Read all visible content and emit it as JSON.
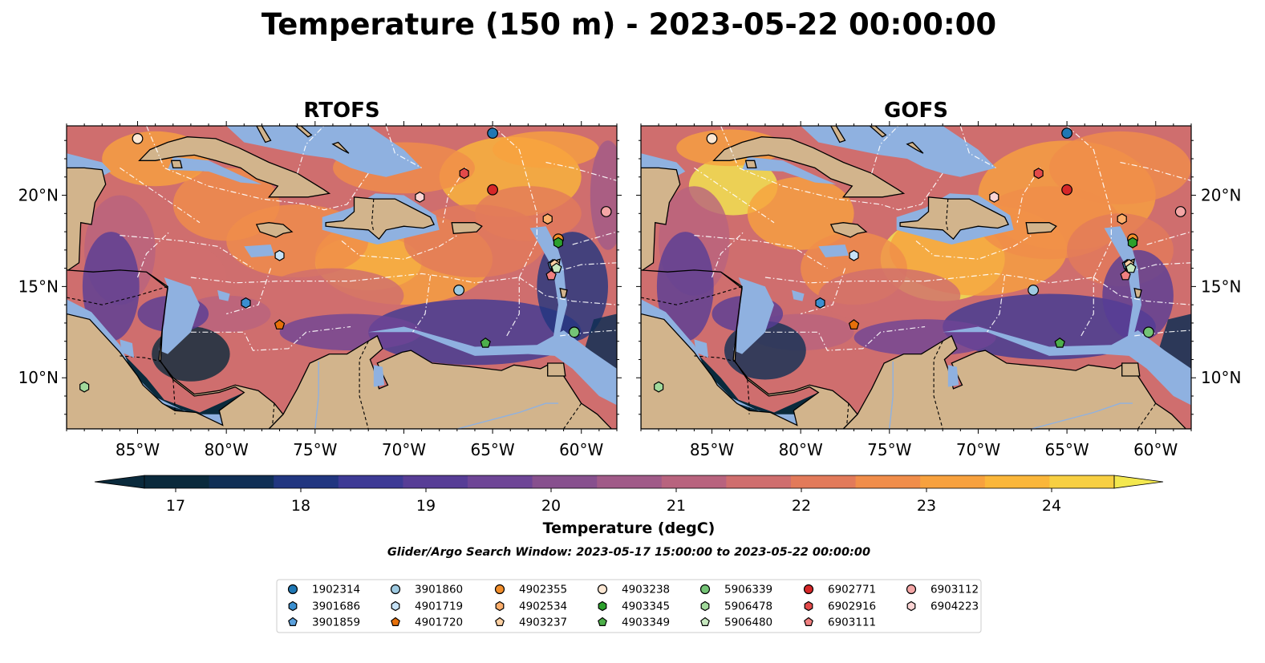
{
  "figure": {
    "title": "Temperature (150 m) - 2023-05-22 00:00:00",
    "panels": [
      {
        "id": "rtofs",
        "title": "RTOFS"
      },
      {
        "id": "gofs",
        "title": "GOFS"
      }
    ],
    "x_ticks": [
      "85°W",
      "80°W",
      "75°W",
      "70°W",
      "65°W",
      "60°W"
    ],
    "y_ticks": [
      "20°N",
      "15°N",
      "10°N"
    ],
    "extent": {
      "lon": [
        -89,
        -58
      ],
      "lat": [
        7.2,
        23.8
      ]
    },
    "colorbar": {
      "label": "Temperature (degC)",
      "ticks": [
        "17",
        "18",
        "19",
        "20",
        "21",
        "22",
        "23",
        "24"
      ],
      "range": [
        16.75,
        24.5
      ],
      "extend": "both",
      "colors": [
        "#0a2a3c",
        "#0f2f55",
        "#213680",
        "#3d3a95",
        "#573d96",
        "#6e4596",
        "#87508e",
        "#a05a88",
        "#b8637e",
        "#cf6e6e",
        "#e27a5a",
        "#f08d4a",
        "#f7a13e",
        "#fab63a",
        "#f7cf42",
        "#f3e84f"
      ]
    },
    "caption": "Glider/Argo Search Window: 2023-05-17 15:00:00 to 2023-05-22 00:00:00",
    "colors": {
      "land": "#d2b48c",
      "shelf": "#8fb1e0",
      "deep_dark": "#0a2a3c"
    }
  },
  "chart_data": {
    "type": "map",
    "markers": [
      {
        "id": "1902314",
        "lon": -65.0,
        "lat": 23.4,
        "shape": "circle",
        "color": "#1f77b4"
      },
      {
        "id": "3901686",
        "lon": -78.9,
        "lat": 14.1,
        "shape": "hexagon",
        "color": "#3a8fd0"
      },
      {
        "id": "3901859",
        "lon": -61.6,
        "lat": 16.2,
        "shape": "pentagon",
        "color": "#5aa0dc"
      },
      {
        "id": "3901860",
        "lon": -66.9,
        "lat": 14.8,
        "shape": "circle",
        "color": "#9ecae1"
      },
      {
        "id": "4901719",
        "lon": -77.0,
        "lat": 16.7,
        "shape": "hexagon",
        "color": "#c6e2f7"
      },
      {
        "id": "4901720",
        "lon": -77.0,
        "lat": 12.9,
        "shape": "pentagon",
        "color": "#e6700a"
      },
      {
        "id": "4902355",
        "lon": -61.3,
        "lat": 17.6,
        "shape": "circle",
        "color": "#f28e2b"
      },
      {
        "id": "4902534",
        "lon": -61.9,
        "lat": 18.7,
        "shape": "hexagon",
        "color": "#fdae6b"
      },
      {
        "id": "4903237",
        "lon": -61.5,
        "lat": 16.2,
        "shape": "pentagon",
        "color": "#fdd0a2"
      },
      {
        "id": "4903238",
        "lon": -85.0,
        "lat": 23.1,
        "shape": "circle",
        "color": "#fde8d4"
      },
      {
        "id": "4903345",
        "lon": -61.3,
        "lat": 17.4,
        "shape": "hexagon",
        "color": "#2ca02c"
      },
      {
        "id": "4903349",
        "lon": -65.4,
        "lat": 11.9,
        "shape": "pentagon",
        "color": "#4daf4a"
      },
      {
        "id": "5906339",
        "lon": -60.4,
        "lat": 12.5,
        "shape": "circle",
        "color": "#74c476"
      },
      {
        "id": "5906478",
        "lon": -88.0,
        "lat": 9.5,
        "shape": "hexagon",
        "color": "#a1d99b"
      },
      {
        "id": "5906480",
        "lon": -61.4,
        "lat": 16.0,
        "shape": "pentagon",
        "color": "#c7e9c0"
      },
      {
        "id": "6902771",
        "lon": -65.0,
        "lat": 20.3,
        "shape": "circle",
        "color": "#d62728"
      },
      {
        "id": "6902916",
        "lon": -66.6,
        "lat": 21.2,
        "shape": "hexagon",
        "color": "#e34a4a"
      },
      {
        "id": "6903111",
        "lon": -61.7,
        "lat": 15.6,
        "shape": "pentagon",
        "color": "#f08080"
      },
      {
        "id": "6903112",
        "lon": -58.6,
        "lat": 19.1,
        "shape": "circle",
        "color": "#f4a6a6"
      },
      {
        "id": "6904223",
        "lon": -69.1,
        "lat": 19.9,
        "shape": "hexagon",
        "color": "#fcd5d5"
      }
    ],
    "legend_order": [
      "1902314",
      "3901686",
      "3901859",
      "3901860",
      "4901719",
      "4901720",
      "4902355",
      "4902534",
      "4903237",
      "4903238",
      "4903345",
      "4903349",
      "5906339",
      "5906478",
      "5906480",
      "6902771",
      "6902916",
      "6903111",
      "6903112",
      "6904223"
    ]
  }
}
